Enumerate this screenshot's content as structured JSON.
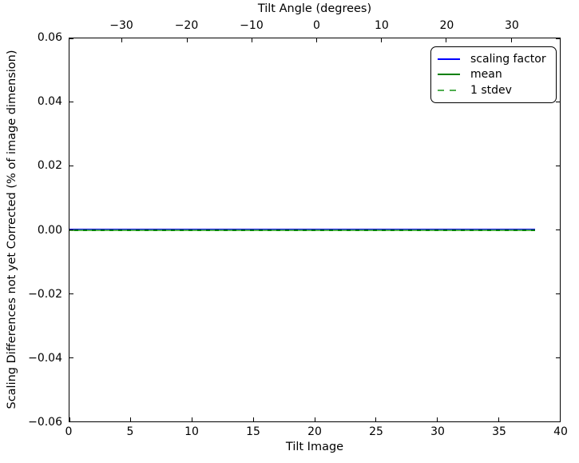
{
  "figure": {
    "background": "#ffffff",
    "frame_color": "#000000"
  },
  "chart_data": {
    "type": "line",
    "title": "",
    "xlabel": "Tilt Image",
    "ylabel": "Scaling Differences not yet Corrected (% of image dimension)",
    "top_xlabel": "Tilt Angle (degrees)",
    "xlim": [
      0,
      40
    ],
    "ylim": [
      -0.06,
      0.06
    ],
    "top_xlim": [
      -38.1,
      37.5
    ],
    "grid": false,
    "axes": {
      "bottom": {
        "label": "Tilt Image",
        "min": 0,
        "max": 40,
        "ticks": [
          {
            "value": 0,
            "label": "0"
          },
          {
            "value": 5,
            "label": "5"
          },
          {
            "value": 10,
            "label": "10"
          },
          {
            "value": 15,
            "label": "15"
          },
          {
            "value": 20,
            "label": "20"
          },
          {
            "value": 25,
            "label": "25"
          },
          {
            "value": 30,
            "label": "30"
          },
          {
            "value": 35,
            "label": "35"
          },
          {
            "value": 40,
            "label": "40"
          }
        ]
      },
      "top": {
        "label": "Tilt Angle (degrees)",
        "min": -38.1,
        "max": 37.5,
        "ticks": [
          {
            "value": -30,
            "label": "−30"
          },
          {
            "value": -20,
            "label": "−20"
          },
          {
            "value": -10,
            "label": "−10"
          },
          {
            "value": 0,
            "label": "0"
          },
          {
            "value": 10,
            "label": "10"
          },
          {
            "value": 20,
            "label": "20"
          },
          {
            "value": 30,
            "label": "30"
          }
        ]
      },
      "left": {
        "label": "Scaling Differences not yet Corrected (% of image dimension)",
        "min": -0.06,
        "max": 0.06,
        "ticks": [
          {
            "value": 0.06,
            "label": "0.06"
          },
          {
            "value": 0.04,
            "label": "0.04"
          },
          {
            "value": 0.02,
            "label": "0.02"
          },
          {
            "value": 0.0,
            "label": "0.00"
          },
          {
            "value": -0.02,
            "label": "−0.02"
          },
          {
            "value": -0.04,
            "label": "−0.04"
          },
          {
            "value": -0.06,
            "label": "−0.06"
          }
        ]
      }
    },
    "series": [
      {
        "name": "scaling factor",
        "color": "#0000ff",
        "style": "solid",
        "x": [
          0,
          1,
          2,
          3,
          4,
          5,
          6,
          7,
          8,
          9,
          10,
          11,
          12,
          13,
          14,
          15,
          16,
          17,
          18,
          19,
          20,
          21,
          22,
          23,
          24,
          25,
          26,
          27,
          28,
          29,
          30,
          31,
          32,
          33,
          34,
          35,
          36,
          37,
          38
        ],
        "y": [
          0,
          0,
          0,
          0,
          0,
          0,
          0,
          0,
          0,
          0,
          0,
          0,
          0,
          0,
          0,
          0,
          0,
          0,
          0,
          0,
          0,
          0,
          0,
          0,
          0,
          0,
          0,
          0,
          0,
          0,
          0,
          0,
          0,
          0,
          0,
          0,
          0,
          0,
          0
        ]
      },
      {
        "name": "mean",
        "color": "#007f00",
        "style": "solid",
        "x": [
          0,
          38
        ],
        "y": [
          0,
          0
        ]
      },
      {
        "name": "1 stdev",
        "color": "#4fae4f",
        "style": "dashed",
        "x": [
          0,
          38
        ],
        "y": [
          0,
          0
        ]
      }
    ],
    "legend": {
      "position": "upper right",
      "items": [
        {
          "label": "scaling factor",
          "color": "#0000ff",
          "style": "solid"
        },
        {
          "label": "mean",
          "color": "#007f00",
          "style": "solid"
        },
        {
          "label": "1 stdev",
          "color": "#4fae4f",
          "style": "dashed"
        }
      ]
    }
  }
}
